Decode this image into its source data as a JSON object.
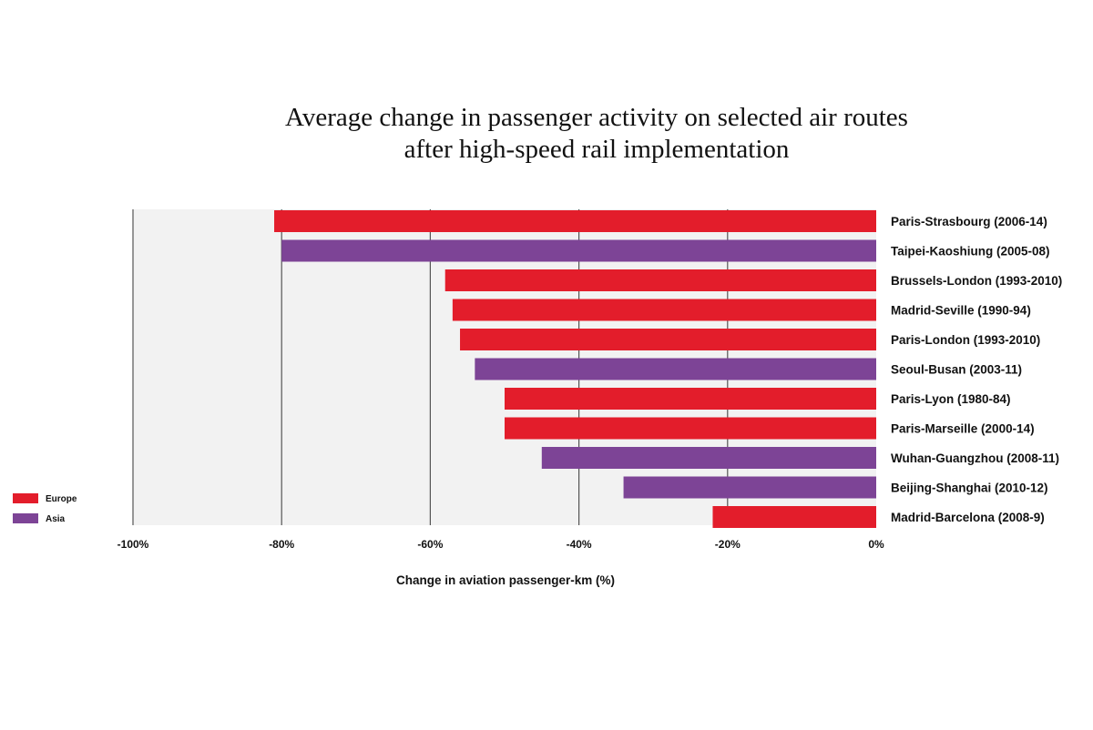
{
  "chart_data": {
    "type": "bar",
    "orientation": "horizontal",
    "title": "Average change in passenger activity on selected air routes after high-speed rail implementation",
    "title_lines": [
      "Average change in passenger activity on selected air routes",
      "after high-speed rail implementation"
    ],
    "xlabel": "Change in aviation passenger-km (%)",
    "ylabel": "",
    "xlim": [
      -100,
      0
    ],
    "xticks": [
      -100,
      -80,
      -60,
      -40,
      -20,
      0
    ],
    "xtick_labels": [
      "-100%",
      "-80%",
      "-60%",
      "-40%",
      "-20%",
      "0%"
    ],
    "grid": "vertical",
    "legend_placement": "bottom-left",
    "legend": [
      {
        "name": "Europe",
        "color": "#e31d2b"
      },
      {
        "name": "Asia",
        "color": "#7d4496"
      }
    ],
    "categories": [
      "Paris-Strasbourg (2006-14)",
      "Taipei-Kaoshiung (2005-08)",
      "Brussels-London (1993-2010)",
      "Madrid-Seville (1990-94)",
      "Paris-London (1993-2010)",
      "Seoul-Busan (2003-11)",
      "Paris-Lyon (1980-84)",
      "Paris-Marseille (2000-14)",
      "Wuhan-Guangzhou (2008-11)",
      "Beijing-Shanghai (2010-12)",
      "Madrid-Barcelona (2008-9)"
    ],
    "values": [
      -81,
      -80,
      -58,
      -57,
      -56,
      -54,
      -50,
      -50,
      -45,
      -34,
      -22
    ],
    "regions": [
      "Europe",
      "Asia",
      "Europe",
      "Europe",
      "Europe",
      "Asia",
      "Europe",
      "Europe",
      "Asia",
      "Asia",
      "Europe"
    ],
    "colors": {
      "plot_background": "#f2f2f2",
      "gridline": "#555555"
    }
  }
}
